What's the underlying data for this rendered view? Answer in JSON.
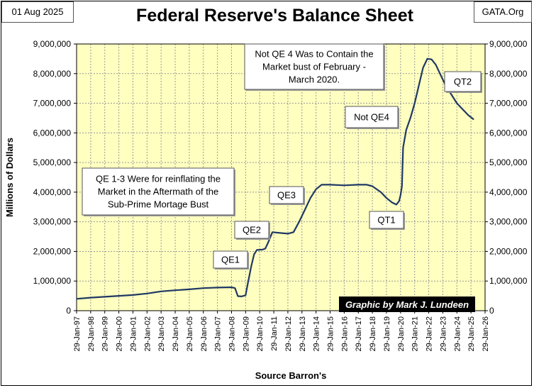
{
  "header": {
    "date": "01 Aug 2025",
    "source_site": "GATA.Org",
    "title": "Federal Reserve's Balance Sheet"
  },
  "chart_data": {
    "type": "line",
    "title": "Federal Reserve's Balance Sheet",
    "xlabel": "Source Barron's",
    "ylabel": "Millions  of  Dollars",
    "ylim": [
      0,
      9000000
    ],
    "yticks": [
      0,
      1000000,
      2000000,
      3000000,
      4000000,
      5000000,
      6000000,
      7000000,
      8000000,
      9000000
    ],
    "ytick_labels": [
      "0",
      "1,000,000",
      "2,000,000",
      "3,000,000",
      "4,000,000",
      "5,000,000",
      "6,000,000",
      "7,000,000",
      "8,000,000",
      "9,000,000"
    ],
    "xlim": [
      1997.0,
      2026.0
    ],
    "xtick_labels": [
      "29-Jan-97",
      "29-Jan-98",
      "29-Jan-99",
      "29-Jan-00",
      "29-Jan-01",
      "29-Jan-02",
      "29-Jan-03",
      "29-Jan-04",
      "29-Jan-05",
      "29-Jan-06",
      "29-Jan-07",
      "29-Jan-08",
      "29-Jan-09",
      "29-Jan-10",
      "29-Jan-11",
      "29-Jan-12",
      "29-Jan-13",
      "29-Jan-14",
      "29-Jan-15",
      "29-Jan-16",
      "29-Jan-17",
      "29-Jan-18",
      "29-Jan-19",
      "29-Jan-20",
      "29-Jan-21",
      "29-Jan-22",
      "29-Jan-23",
      "29-Jan-24",
      "29-Jan-25",
      "29-Jan-26"
    ],
    "grid": true,
    "colors": {
      "plot_bg": "#ffffc0",
      "line": "#1f3864",
      "grid": "#999999"
    },
    "series": [
      {
        "name": "Fed Balance Sheet",
        "points": [
          [
            1997.0,
            400000
          ],
          [
            1998.0,
            440000
          ],
          [
            1999.0,
            470000
          ],
          [
            2000.0,
            500000
          ],
          [
            2001.0,
            530000
          ],
          [
            2002.0,
            580000
          ],
          [
            2003.0,
            650000
          ],
          [
            2004.0,
            690000
          ],
          [
            2005.0,
            720000
          ],
          [
            2006.0,
            760000
          ],
          [
            2007.0,
            780000
          ],
          [
            2008.0,
            790000
          ],
          [
            2008.25,
            760000
          ],
          [
            2008.45,
            490000
          ],
          [
            2008.7,
            480000
          ],
          [
            2009.0,
            520000
          ],
          [
            2009.15,
            900000
          ],
          [
            2009.4,
            1500000
          ],
          [
            2009.6,
            1900000
          ],
          [
            2009.8,
            2050000
          ],
          [
            2010.2,
            2060000
          ],
          [
            2010.4,
            2100000
          ],
          [
            2010.6,
            2300000
          ],
          [
            2010.9,
            2650000
          ],
          [
            2011.5,
            2620000
          ],
          [
            2012.0,
            2600000
          ],
          [
            2012.4,
            2650000
          ],
          [
            2012.8,
            3000000
          ],
          [
            2013.2,
            3400000
          ],
          [
            2013.6,
            3800000
          ],
          [
            2014.0,
            4100000
          ],
          [
            2014.4,
            4250000
          ],
          [
            2015.0,
            4250000
          ],
          [
            2016.0,
            4230000
          ],
          [
            2017.0,
            4250000
          ],
          [
            2017.6,
            4250000
          ],
          [
            2018.0,
            4200000
          ],
          [
            2018.6,
            4000000
          ],
          [
            2019.0,
            3800000
          ],
          [
            2019.4,
            3650000
          ],
          [
            2019.7,
            3580000
          ],
          [
            2019.9,
            3700000
          ],
          [
            2020.0,
            3900000
          ],
          [
            2020.1,
            4200000
          ],
          [
            2020.18,
            5500000
          ],
          [
            2020.4,
            6100000
          ],
          [
            2020.7,
            6500000
          ],
          [
            2021.0,
            7000000
          ],
          [
            2021.3,
            7600000
          ],
          [
            2021.6,
            8200000
          ],
          [
            2021.9,
            8500000
          ],
          [
            2022.2,
            8480000
          ],
          [
            2022.5,
            8300000
          ],
          [
            2022.8,
            8000000
          ],
          [
            2023.2,
            7600000
          ],
          [
            2023.6,
            7300000
          ],
          [
            2024.0,
            7000000
          ],
          [
            2024.4,
            6800000
          ],
          [
            2024.8,
            6600000
          ],
          [
            2025.2,
            6450000
          ]
        ]
      }
    ],
    "annotations": [
      {
        "id": "note-qe4",
        "lines": [
          "Not QE 4 Was to Contain the",
          "Market bust of February -",
          "March  2020."
        ]
      },
      {
        "id": "note-qe13",
        "lines": [
          "QE 1-3  Were  for reinflating the",
          "Market in the Aftermath  of the",
          "Sub-Prime Mortage  Bust"
        ]
      },
      {
        "id": "label-qe1",
        "lines": [
          "QE1"
        ]
      },
      {
        "id": "label-qe2",
        "lines": [
          "QE2"
        ]
      },
      {
        "id": "label-qe3",
        "lines": [
          "QE3"
        ]
      },
      {
        "id": "label-qt1",
        "lines": [
          "QT1"
        ]
      },
      {
        "id": "label-notqe4",
        "lines": [
          "Not QE4"
        ]
      },
      {
        "id": "label-qt2",
        "lines": [
          "QT2"
        ]
      }
    ],
    "credit": "Graphic by Mark J. Lundeen"
  }
}
